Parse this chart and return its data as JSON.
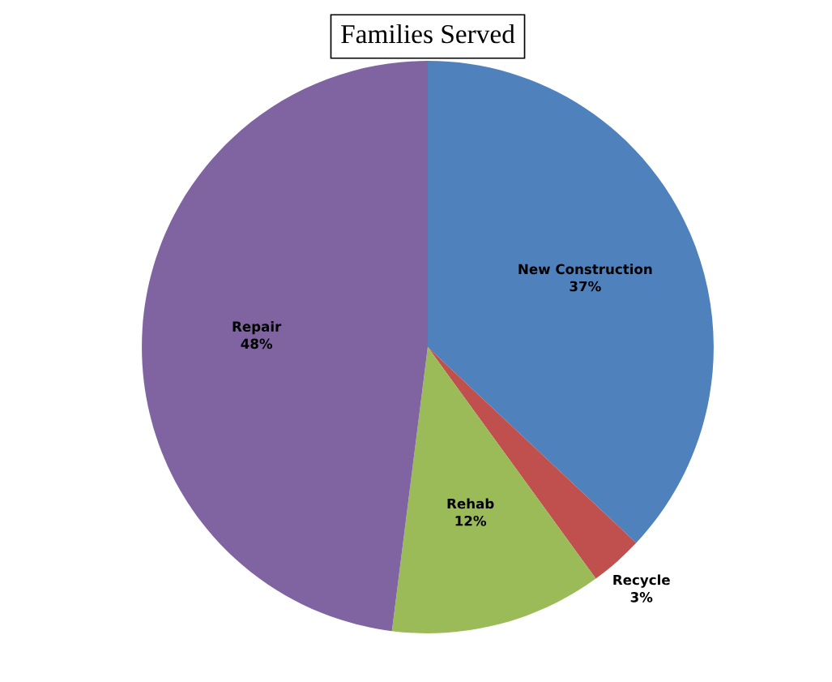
{
  "chart_data": {
    "type": "pie",
    "title": "Families Served",
    "categories": [
      "New Construction",
      "Recycle",
      "Rehab",
      "Repair"
    ],
    "values": [
      37,
      3,
      12,
      48
    ],
    "colors": [
      "#4f81bd",
      "#c0504d",
      "#9bbb59",
      "#8064a2"
    ],
    "value_labels": [
      "37%",
      "3%",
      "12%",
      "48%"
    ],
    "legend": false
  }
}
